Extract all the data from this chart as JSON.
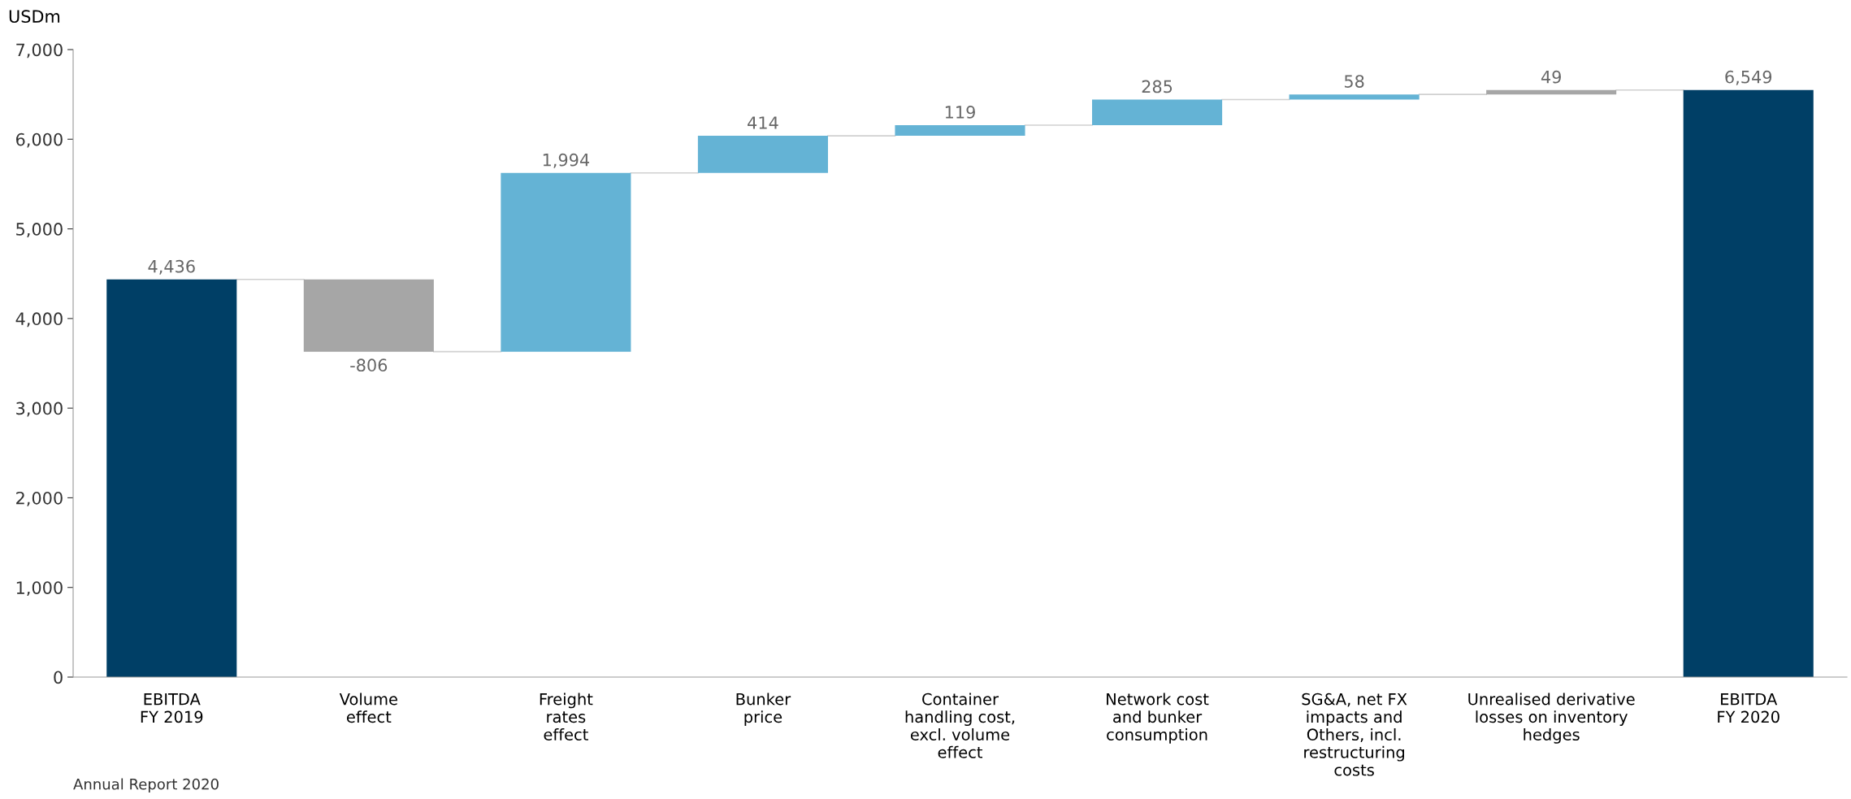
{
  "chart_data": {
    "type": "bar",
    "ylabel": "USDm",
    "categories": [
      "EBITDA\nFY 2019",
      "Volume\neffect",
      "Freight\nrates\neffect",
      "Bunker\nprice",
      "Container\nhandling cost,\nexcl. volume\neffect",
      "Network cost\nand bunker\nconsumption",
      "SG&A, net FX\nimpacts and\nOthers, incl.\nrestructuring\ncosts",
      "Unrealised derivative\nlosses on inventory\nhedges",
      "EBITDA\nFY 2020"
    ],
    "values": [
      4436,
      -806,
      1994,
      414,
      119,
      285,
      58,
      49,
      6549
    ],
    "base": [
      0,
      4436,
      3630,
      5624,
      6038,
      6157,
      6442,
      6500,
      0
    ],
    "colors": [
      "#003f66",
      "#a6a6a6",
      "#64b3d5",
      "#64b3d5",
      "#64b3d5",
      "#64b3d5",
      "#64b3d5",
      "#a6a6a6",
      "#003f66"
    ],
    "value_labels": [
      "4,436",
      "-806",
      "1,994",
      "414",
      "119",
      "285",
      "58",
      "49",
      "6,549"
    ],
    "ylim": [
      0,
      7000
    ],
    "yticks": [
      0,
      {
        "value": 1000,
        "label": "1,000"
      },
      {
        "value": 2000,
        "label": "2,000"
      },
      {
        "value": 3000,
        "label": "3,000"
      },
      {
        "value": 4000,
        "label": "4,000"
      },
      {
        "value": 5000,
        "label": "5,000"
      },
      {
        "value": 6000,
        "label": "6,000"
      },
      {
        "value": 7000,
        "label": "7,000"
      }
    ],
    "grid": false,
    "legend": false,
    "annotations": [
      "Annual Report 2020"
    ]
  }
}
